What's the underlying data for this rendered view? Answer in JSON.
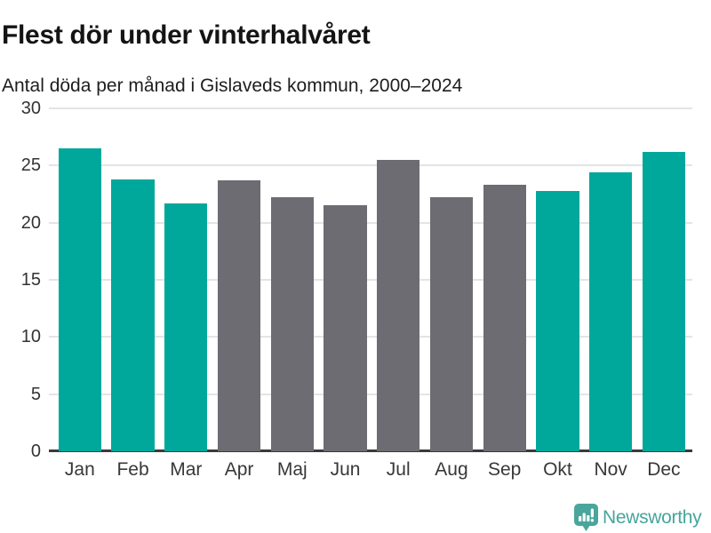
{
  "header": {
    "title": "Flest dör under vinterhalvåret",
    "subtitle": "Antal döda per månad i Gislaveds kommun, 2000–2024"
  },
  "chart_data": {
    "type": "bar",
    "title": "Flest dör under vinterhalvåret",
    "subtitle": "Antal döda per månad i Gislaveds kommun, 2000–2024",
    "categories": [
      "Jan",
      "Feb",
      "Mar",
      "Apr",
      "Maj",
      "Jun",
      "Jul",
      "Aug",
      "Sep",
      "Okt",
      "Nov",
      "Dec"
    ],
    "values": [
      26.5,
      23.8,
      21.7,
      23.7,
      22.2,
      21.5,
      25.5,
      22.2,
      23.3,
      22.8,
      24.4,
      26.2
    ],
    "bar_colors": [
      "#00a89b",
      "#00a89b",
      "#00a89b",
      "#6d6c72",
      "#6d6c72",
      "#6d6c72",
      "#6d6c72",
      "#6d6c72",
      "#6d6c72",
      "#00a89b",
      "#00a89b",
      "#00a89b"
    ],
    "highlight_color": "#00a89b",
    "muted_color": "#6d6c72",
    "xlabel": "",
    "ylabel": "",
    "ylim": [
      0,
      30
    ],
    "yticks": [
      0,
      5,
      10,
      15,
      20,
      25,
      30
    ],
    "grid": "horizontal",
    "legend": "none"
  },
  "footer": {
    "brand": "Newsworthy",
    "logo_icon": "bar-chart-speech-bubble-icon",
    "brand_color": "#47a59c"
  },
  "colors": {
    "background": "#ffffff",
    "title_text": "#141414",
    "axis_text": "#333333",
    "axis_line": "#3a3a3a",
    "gridline": "#e4e4e6"
  }
}
